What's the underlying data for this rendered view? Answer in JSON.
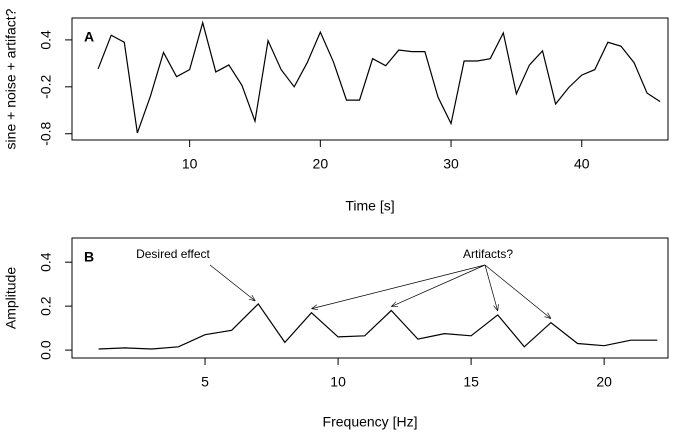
{
  "chart_data": [
    {
      "type": "line",
      "panel": "A",
      "xlabel": "Time [s]",
      "ylabel": "sine + noise + artifact?",
      "x": [
        3,
        4,
        5,
        6,
        7,
        8,
        9,
        10,
        11,
        12,
        13,
        14,
        15,
        16,
        17,
        18,
        19,
        20,
        21,
        22,
        23,
        24,
        25,
        26,
        27,
        28,
        29,
        30,
        31,
        32,
        33,
        34,
        35,
        36,
        37,
        38,
        39,
        40,
        41,
        42,
        43,
        44,
        45,
        46
      ],
      "series": [
        {
          "color": "#000000",
          "values": [
            0.03,
            0.46,
            0.37,
            -0.79,
            -0.32,
            0.24,
            -0.07,
            0.02,
            0.62,
            -0.01,
            0.08,
            -0.18,
            -0.64,
            0.39,
            0.02,
            -0.2,
            0.11,
            0.5,
            0.12,
            -0.37,
            -0.37,
            0.16,
            0.07,
            0.27,
            0.25,
            0.25,
            -0.33,
            -0.67,
            0.13,
            0.13,
            0.16,
            0.49,
            -0.29,
            0.08,
            0.26,
            -0.42,
            -0.21,
            -0.05,
            0.02,
            0.37,
            0.32,
            0.11,
            -0.28,
            -0.39
          ]
        }
      ],
      "xlim": [
        1,
        46.6
      ],
      "ylim": [
        -0.88,
        0.68
      ],
      "xticks": [
        10,
        20,
        30,
        40
      ],
      "yticks": [
        -0.8,
        -0.2,
        0.4
      ]
    },
    {
      "type": "line",
      "panel": "B",
      "xlabel": "Frequency [Hz]",
      "ylabel": "Amplitude",
      "x": [
        1,
        2,
        3,
        4,
        5,
        6,
        7,
        8,
        9,
        10,
        11,
        12,
        13,
        14,
        15,
        16,
        17,
        18,
        19,
        20,
        21,
        22
      ],
      "series": [
        {
          "color": "#000000",
          "values": [
            0.005,
            0.01,
            0.005,
            0.015,
            0.07,
            0.09,
            0.21,
            0.035,
            0.17,
            0.06,
            0.065,
            0.18,
            0.05,
            0.075,
            0.065,
            0.16,
            0.015,
            0.125,
            0.03,
            0.02,
            0.045,
            0.045
          ]
        }
      ],
      "xlim": [
        0,
        22.4
      ],
      "ylim": [
        -0.036,
        0.51
      ],
      "xticks": [
        5,
        10,
        15,
        20
      ],
      "yticks": [
        {
          "value": 0,
          "label": "0.0"
        },
        0.2,
        0.4
      ],
      "annotations": [
        "Desired effect",
        "Artifacts?"
      ]
    }
  ]
}
